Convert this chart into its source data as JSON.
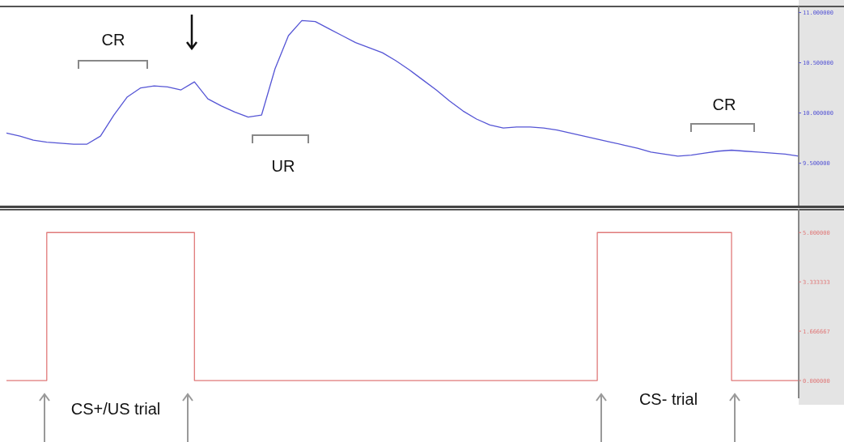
{
  "chart_data": [
    {
      "type": "line",
      "categories": [
        null,
        null,
        null,
        null,
        null,
        null,
        null,
        null,
        null,
        null,
        null,
        null,
        null,
        null,
        null,
        null,
        null,
        null,
        null,
        null,
        null,
        null,
        null,
        null,
        null,
        null,
        null,
        null,
        null,
        null,
        null,
        null,
        null,
        null,
        null,
        null,
        null,
        null,
        null,
        null,
        null,
        null,
        null,
        null,
        null,
        null,
        null,
        null,
        null,
        null,
        null,
        null,
        null,
        null,
        null,
        null,
        null,
        null,
        null,
        null
      ],
      "series": [
        {
          "color": "#5555d5",
          "values": [
            9.8,
            9.77,
            9.73,
            9.71,
            9.7,
            9.69,
            9.69,
            9.77,
            9.98,
            10.16,
            10.25,
            10.27,
            10.26,
            10.23,
            10.31,
            10.14,
            10.07,
            10.01,
            9.96,
            9.98,
            10.44,
            10.77,
            10.92,
            10.91,
            10.84,
            10.77,
            10.7,
            10.65,
            10.6,
            10.52,
            10.43,
            10.33,
            10.23,
            10.12,
            10.02,
            9.94,
            9.88,
            9.85,
            9.86,
            9.86,
            9.85,
            9.83,
            9.8,
            9.77,
            9.74,
            9.71,
            9.68,
            9.65,
            9.61,
            9.59,
            9.57,
            9.58,
            9.6,
            9.62,
            9.63,
            9.62,
            9.61,
            9.6,
            9.59,
            9.57
          ]
        }
      ],
      "ylim": [
        9.07,
        11.06
      ],
      "yticks": [
        {
          "value": 11,
          "label": "11.000000"
        },
        {
          "value": 10.5,
          "label": "10.500000"
        },
        {
          "value": 10,
          "label": "10.000000"
        },
        {
          "value": 9.5,
          "label": "9.500000"
        }
      ],
      "tick_labels": "y",
      "marker": "none",
      "line_style": "solid",
      "annotations": [
        "CR",
        "UR",
        "CR"
      ]
    },
    {
      "type": "step",
      "categories": [
        null,
        null,
        null,
        null,
        null,
        null,
        null,
        null,
        null,
        null,
        null,
        null,
        null,
        null,
        null,
        null,
        null,
        null,
        null,
        null,
        null,
        null,
        null,
        null,
        null,
        null,
        null,
        null,
        null,
        null,
        null,
        null,
        null,
        null,
        null,
        null,
        null,
        null,
        null,
        null,
        null,
        null,
        null,
        null,
        null,
        null,
        null,
        null,
        null,
        null,
        null,
        null,
        null,
        null,
        null,
        null,
        null,
        null,
        null,
        null
      ],
      "series": [
        {
          "color": "#e07a7a",
          "values": [
            0,
            0,
            0,
            5,
            5,
            5,
            5,
            5,
            5,
            5,
            5,
            5,
            5,
            5,
            0,
            0,
            0,
            0,
            0,
            0,
            0,
            0,
            0,
            0,
            0,
            0,
            0,
            0,
            0,
            0,
            0,
            0,
            0,
            0,
            0,
            0,
            0,
            0,
            0,
            0,
            0,
            0,
            0,
            0,
            5,
            5,
            5,
            5,
            5,
            5,
            5,
            5,
            5,
            5,
            0,
            0,
            0,
            0,
            0,
            0
          ]
        }
      ],
      "ylim": [
        -0.6,
        5.8
      ],
      "yticks": [
        {
          "value": 5,
          "label": "5.000000"
        },
        {
          "value": 3.333333,
          "label": "3.333333"
        },
        {
          "value": 1.666667,
          "label": "1.666667"
        },
        {
          "value": 0,
          "label": "0.000000"
        }
      ],
      "tick_labels": "y",
      "marker": "none",
      "line_style": "solid",
      "annotations": [
        "CS+/US trial",
        "CS- trial"
      ]
    }
  ]
}
